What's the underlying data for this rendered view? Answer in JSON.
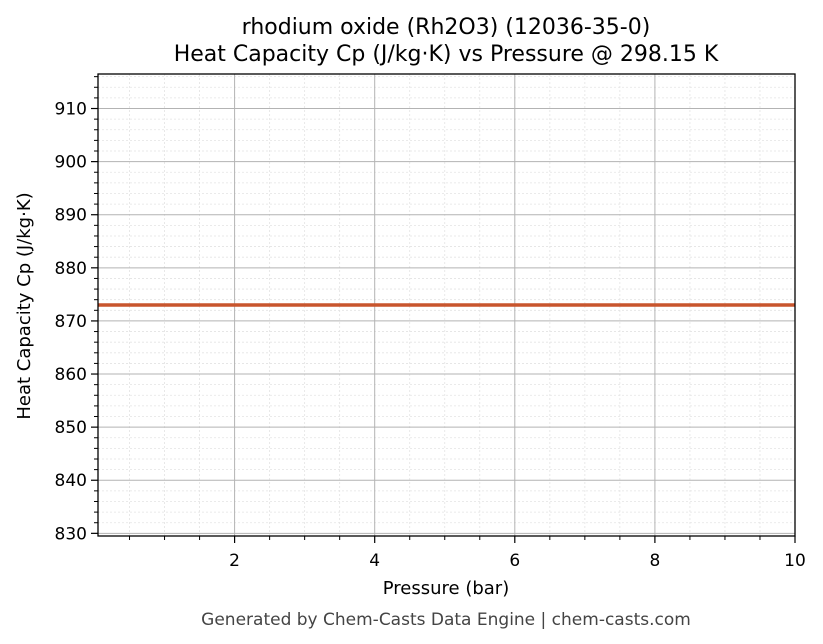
{
  "chart_data": {
    "type": "line",
    "title": "rhodium oxide (Rh2O3) (12036-35-0)",
    "subtitle": "Heat Capacity Cp (J/kg·K) vs Pressure @ 298.15 K",
    "xlabel": "Pressure (bar)",
    "ylabel": "Heat Capacity Cp (J/kg·K)",
    "xlim": [
      0.05,
      10
    ],
    "ylim": [
      829.5,
      916.5
    ],
    "xticks": [
      2,
      4,
      6,
      8,
      10
    ],
    "yticks": [
      830,
      840,
      850,
      860,
      870,
      880,
      890,
      900,
      910
    ],
    "grid": true,
    "minor_grid": true,
    "series": [
      {
        "color": "#c8552d",
        "x": [
          0.05,
          10
        ],
        "y": [
          873,
          873
        ]
      }
    ]
  },
  "footer": "Generated by Chem-Casts Data Engine | chem-casts.com"
}
